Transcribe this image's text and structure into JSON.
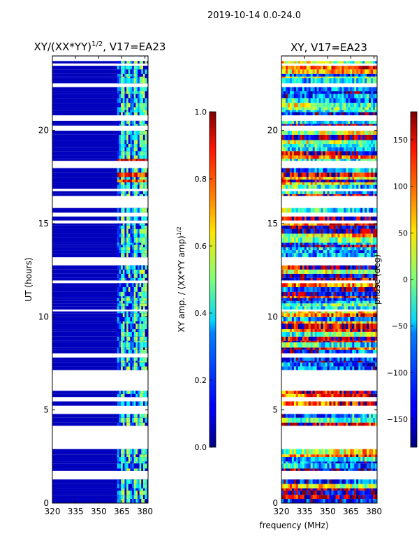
{
  "figure": {
    "suptitle": "2019-10-14 0.0-24.0",
    "shared_xlabel": "frequency (MHz)"
  },
  "chart_data": [
    {
      "type": "heatmap",
      "title_main": "XY/(XX*YY)",
      "title_sup": "1/2",
      "title_rest": ", V17=EA23",
      "xlabel": "",
      "ylabel": "UT (hours)",
      "xlim": [
        320,
        382
      ],
      "ylim": [
        0,
        24
      ],
      "xticks": [
        320,
        335,
        350,
        365,
        380
      ],
      "yticks": [
        0,
        5,
        10,
        15,
        20
      ],
      "colormap": "jet",
      "colorbar": {
        "label_main": "XY amp. / (XX*YY amp)",
        "label_sup": "1/2",
        "range": [
          0.0,
          1.0
        ],
        "ticks": [
          "0.0",
          "0.2",
          "0.4",
          "0.6",
          "0.8",
          "1.0"
        ]
      },
      "active_band_mhz": [
        362,
        381
      ],
      "bright_columns_mhz": [
        365,
        369,
        373,
        377,
        380
      ],
      "typical_value_outside_band": 0.0,
      "typical_value_in_band": 0.45,
      "high_value_hours": [
        17.6,
        18.2
      ],
      "high_value": 0.9
    },
    {
      "type": "heatmap",
      "title_main": "XY, V17=EA23",
      "xlabel": "frequency (MHz)",
      "ylabel": "",
      "xlim": [
        320,
        382
      ],
      "ylim": [
        0,
        24
      ],
      "xticks": [
        320,
        335,
        350,
        365,
        380
      ],
      "yticks": [
        0,
        5,
        10,
        15,
        20
      ],
      "colormap": "jet",
      "colorbar": {
        "label_main": "phase (deg)",
        "range": [
          -180,
          180
        ],
        "ticks": [
          "−150",
          "−100",
          "−50",
          "0",
          "50",
          "100",
          "150"
        ]
      },
      "value_range_deg": [
        -180,
        180
      ]
    }
  ]
}
